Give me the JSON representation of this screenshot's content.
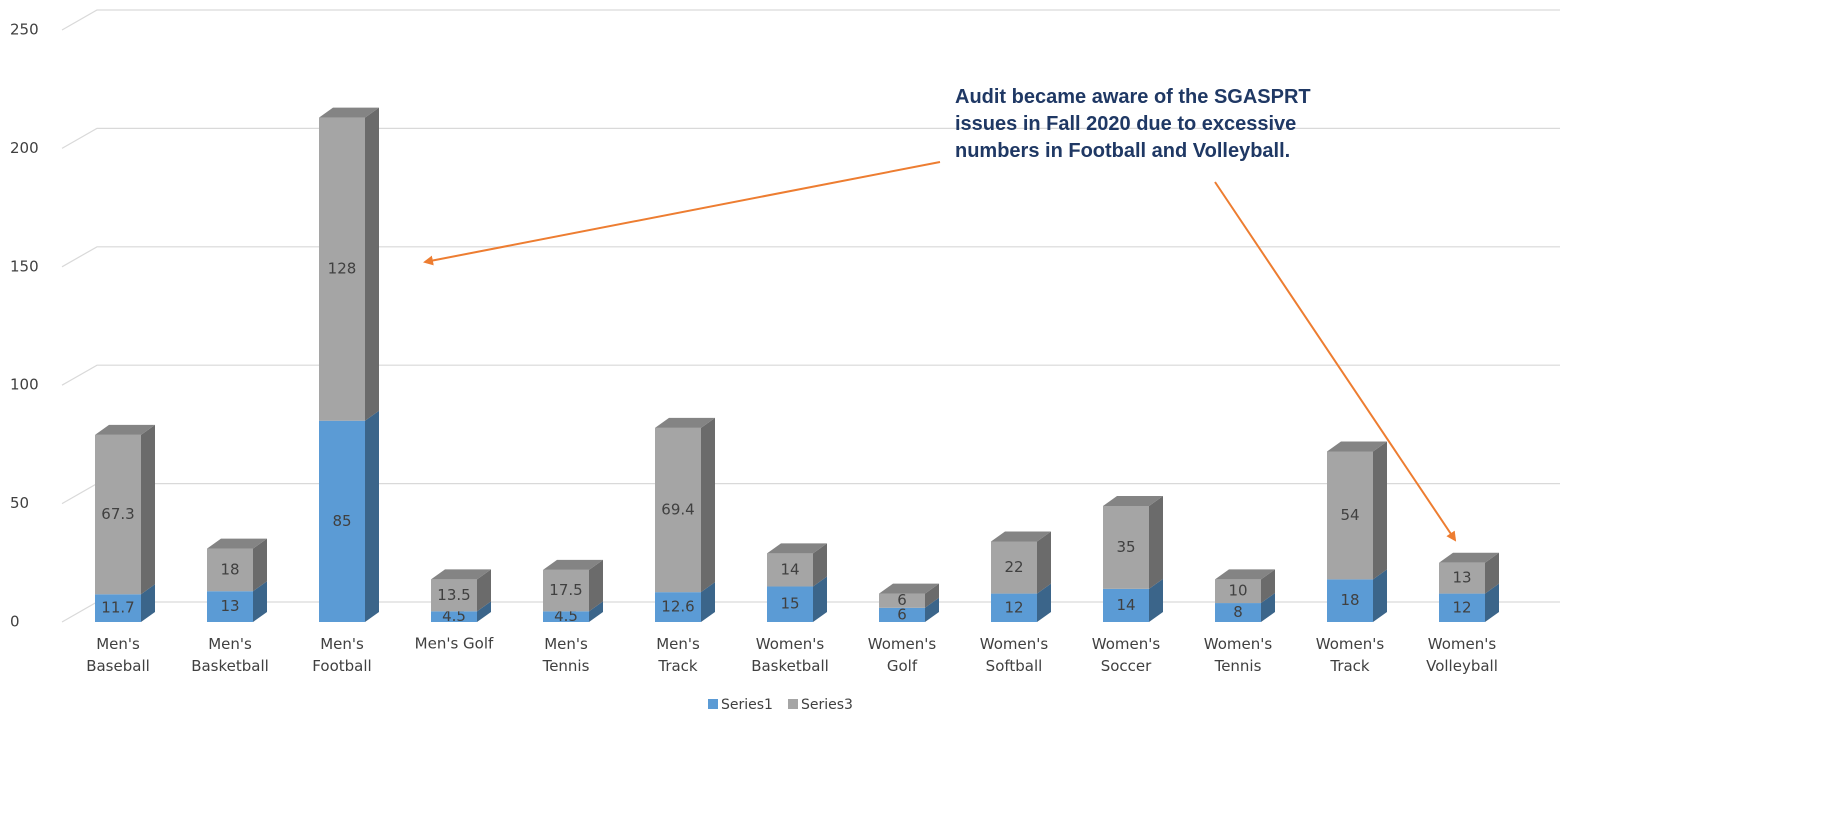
{
  "chart_data": {
    "type": "bar3d_stacked",
    "categories": [
      "Men's Baseball",
      "Men's Basketball",
      "Men's Football",
      "Men's Golf",
      "Men's Tennis",
      "Men's Track",
      "Women's Basketball",
      "Women's Golf",
      "Women's Softball",
      "Women's Soccer",
      "Women's Tennis",
      "Women's Track",
      "Women's Volleyball"
    ],
    "series": [
      {
        "name": "Series1",
        "color": "#5b9bd5",
        "values": [
          11.7,
          13,
          85,
          4.5,
          4.5,
          12.6,
          15,
          6,
          12,
          14,
          8,
          18,
          12
        ]
      },
      {
        "name": "Series3",
        "color": "#a5a5a5",
        "values": [
          67.3,
          18,
          128,
          13.5,
          17.5,
          69.4,
          14,
          6,
          22,
          35,
          10,
          54,
          13
        ]
      }
    ],
    "ylim": [
      0,
      250
    ],
    "yticks": [
      0,
      50,
      100,
      150,
      200,
      250
    ],
    "grid": true,
    "legend": "bottom",
    "annotation": "Audit became aware of the SGASPRT issues in Fall 2020 due to excessive numbers in Football and Volleyball."
  }
}
